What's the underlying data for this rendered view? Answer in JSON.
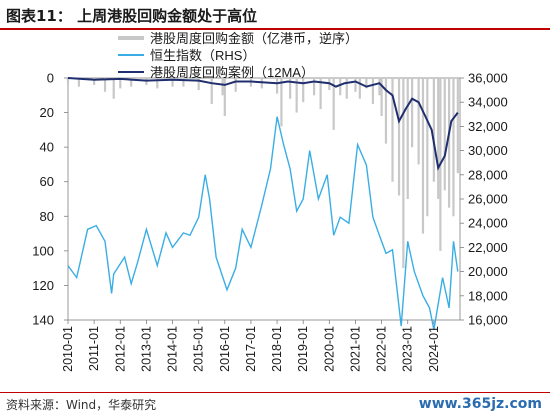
{
  "header": {
    "title": "图表11：  上周港股回购金额处于高位"
  },
  "footer": {
    "source": "资料来源：Wind，华泰研究",
    "watermark": "www.365jz.com"
  },
  "colors": {
    "buyback": "#c8c8c8",
    "hsi": "#3aaee4",
    "ma": "#1f2e6e",
    "title_rule": "#c00000"
  },
  "chart_data": {
    "type": "line",
    "x_type": "month",
    "x_range": [
      "2010-01",
      "2024-12"
    ],
    "x_ticks": [
      "2010-01",
      "2011-01",
      "2012-01",
      "2013-01",
      "2014-01",
      "2015-01",
      "2016-01",
      "2017-01",
      "2018-01",
      "2019-01",
      "2020-01",
      "2021-01",
      "2022-01",
      "2023-01",
      "2024-01"
    ],
    "left_axis": {
      "min": 0,
      "max": 140,
      "reversed": true,
      "ticks": [
        "0",
        "20",
        "40",
        "60",
        "80",
        "100",
        "120",
        "140"
      ],
      "tick_values": [
        0,
        20,
        40,
        60,
        80,
        100,
        120,
        140
      ]
    },
    "right_axis": {
      "min": 16000,
      "max": 36000,
      "ticks": [
        "16,000",
        "18,000",
        "20,000",
        "22,000",
        "24,000",
        "26,000",
        "28,000",
        "30,000",
        "32,000",
        "34,000",
        "36,000"
      ],
      "tick_values": [
        16000,
        18000,
        20000,
        22000,
        24000,
        26000,
        28000,
        30000,
        32000,
        34000,
        36000
      ]
    },
    "legend": {
      "position": "top",
      "items": [
        {
          "label": "港股周度回购金额（亿港币，逆序）",
          "series": "buyback"
        },
        {
          "label": "恒生指数（RHS）",
          "series": "hsi"
        },
        {
          "label": "港股周度回购案例（12MA）",
          "series": "ma"
        }
      ]
    },
    "series": [
      {
        "key": "buyback",
        "name": "港股周度回购金额（亿港币，逆序）",
        "axis": "left",
        "style": "bars",
        "x": [
          "2010-01",
          "2010-06",
          "2011-01",
          "2011-06",
          "2011-10",
          "2012-01",
          "2012-06",
          "2013-01",
          "2013-06",
          "2014-01",
          "2014-06",
          "2015-01",
          "2015-07",
          "2015-12",
          "2016-01",
          "2016-06",
          "2017-01",
          "2017-06",
          "2018-01",
          "2018-03",
          "2018-07",
          "2018-10",
          "2019-01",
          "2019-06",
          "2019-09",
          "2020-01",
          "2020-03",
          "2020-06",
          "2020-09",
          "2021-01",
          "2021-03",
          "2021-06",
          "2021-09",
          "2021-12",
          "2022-01",
          "2022-03",
          "2022-06",
          "2022-09",
          "2022-11",
          "2023-01",
          "2023-03",
          "2023-06",
          "2023-08",
          "2023-10",
          "2024-01",
          "2024-03",
          "2024-04",
          "2024-06",
          "2024-08",
          "2024-10",
          "2024-12"
        ],
        "values": [
          3,
          5,
          4,
          8,
          12,
          6,
          5,
          4,
          6,
          5,
          5,
          7,
          15,
          10,
          22,
          8,
          5,
          6,
          9,
          28,
          12,
          20,
          14,
          10,
          18,
          7,
          30,
          10,
          12,
          8,
          12,
          6,
          15,
          10,
          22,
          38,
          60,
          68,
          110,
          70,
          40,
          50,
          90,
          80,
          60,
          70,
          100,
          65,
          75,
          80,
          55
        ]
      },
      {
        "key": "hsi",
        "name": "恒生指数",
        "axis": "right",
        "x": [
          "2010-01",
          "2010-05",
          "2010-10",
          "2011-02",
          "2011-06",
          "2011-09",
          "2011-10",
          "2012-03",
          "2012-06",
          "2012-09",
          "2013-01",
          "2013-06",
          "2013-10",
          "2014-01",
          "2014-06",
          "2014-09",
          "2015-01",
          "2015-04",
          "2015-06",
          "2015-09",
          "2016-02",
          "2016-06",
          "2016-09",
          "2017-01",
          "2017-06",
          "2017-10",
          "2018-01",
          "2018-04",
          "2018-07",
          "2018-10",
          "2019-01",
          "2019-04",
          "2019-08",
          "2019-12",
          "2020-03",
          "2020-06",
          "2020-10",
          "2021-02",
          "2021-06",
          "2021-09",
          "2021-12",
          "2022-03",
          "2022-06",
          "2022-10",
          "2023-01",
          "2023-04",
          "2023-08",
          "2023-11",
          "2024-01",
          "2024-05",
          "2024-08",
          "2024-10",
          "2024-12"
        ],
        "values": [
          20500,
          19500,
          23500,
          23800,
          22500,
          18200,
          19800,
          21200,
          19000,
          20800,
          23500,
          20500,
          23200,
          22000,
          23200,
          23000,
          24500,
          28000,
          26000,
          21200,
          18500,
          20300,
          23500,
          22000,
          25500,
          28500,
          32800,
          30500,
          28500,
          25000,
          26000,
          30000,
          26000,
          28000,
          23000,
          24500,
          24000,
          30500,
          28800,
          24500,
          23000,
          21500,
          21800,
          15500,
          22500,
          20000,
          18000,
          17000,
          15200,
          19500,
          17000,
          22500,
          20000
        ]
      },
      {
        "key": "ma",
        "name": "港股周度回购案例（12MA）",
        "axis": "left",
        "x": [
          "2010-01",
          "2011-01",
          "2012-01",
          "2013-01",
          "2014-01",
          "2015-01",
          "2015-07",
          "2016-01",
          "2016-06",
          "2017-01",
          "2018-01",
          "2018-06",
          "2019-01",
          "2019-06",
          "2020-01",
          "2020-04",
          "2020-08",
          "2021-01",
          "2021-06",
          "2021-12",
          "2022-03",
          "2022-06",
          "2022-09",
          "2022-12",
          "2023-03",
          "2023-06",
          "2023-09",
          "2023-12",
          "2024-03",
          "2024-06",
          "2024-09",
          "2024-12"
        ],
        "values": [
          0,
          1,
          0.5,
          1.5,
          1,
          1.5,
          3,
          4,
          2,
          2,
          3,
          2,
          3,
          2,
          3,
          5,
          3,
          2,
          5,
          3,
          7,
          10,
          25,
          18,
          12,
          14,
          22,
          30,
          52,
          45,
          25,
          20
        ]
      }
    ]
  }
}
